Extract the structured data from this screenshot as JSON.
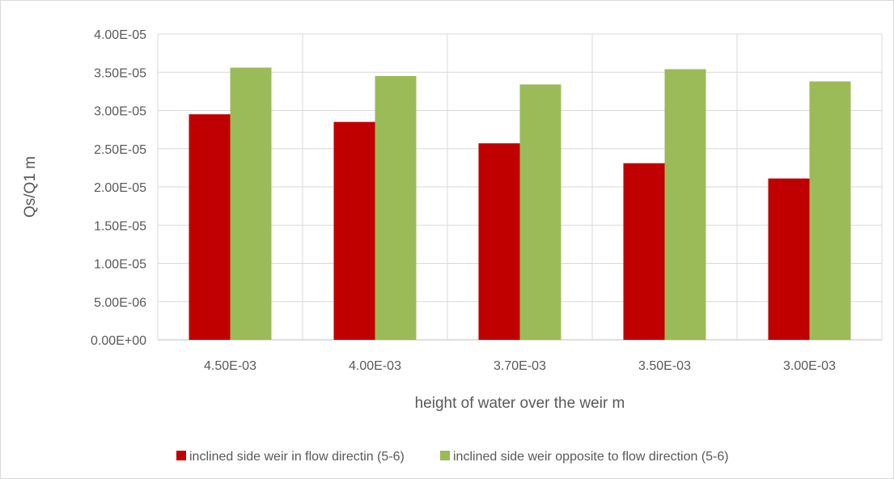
{
  "chart_data": {
    "type": "bar",
    "title": "",
    "xlabel": "height of water over the weir m",
    "ylabel": "Qs/Q1 m",
    "categories": [
      "4.50E-03",
      "4.00E-03",
      "3.70E-03",
      "3.50E-03",
      "3.00E-03"
    ],
    "series": [
      {
        "name": "inclined side weir in flow directin (5-6)",
        "color": "#c00000",
        "values": [
          2.95e-05,
          2.85e-05,
          2.57e-05,
          2.31e-05,
          2.11e-05
        ]
      },
      {
        "name": "inclined side weir opposite to flow direction (5-6)",
        "color": "#9bbb59",
        "values": [
          3.56e-05,
          3.45e-05,
          3.34e-05,
          3.54e-05,
          3.38e-05
        ]
      }
    ],
    "ylim": [
      0,
      4e-05
    ],
    "yticks": [
      "0.00E+00",
      "5.00E-06",
      "1.00E-05",
      "1.50E-05",
      "2.00E-05",
      "2.50E-05",
      "3.00E-05",
      "3.50E-05",
      "4.00E-05"
    ],
    "grid": true,
    "legend_position": "bottom"
  }
}
